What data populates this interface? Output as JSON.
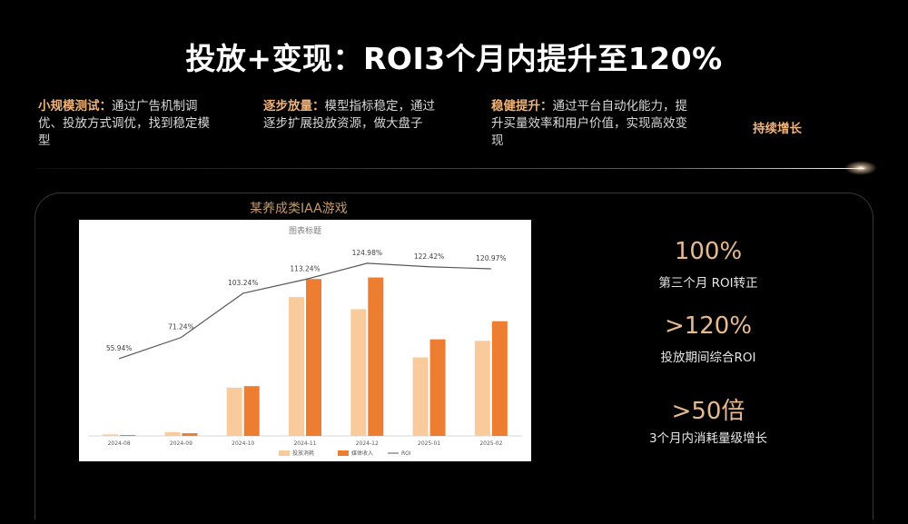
{
  "slide": {
    "title": "投放+变现：ROI3个月内提升至120%"
  },
  "steps": [
    {
      "highlight": "小规模测试：",
      "text": "通过广告机制调优、投放方式调优，找到稳定模型"
    },
    {
      "highlight": "逐步放量：",
      "text": "模型指标稳定，通过逐步扩展投放资源，做大盘子"
    },
    {
      "highlight": "稳健提升：",
      "text": "通过平台自动化能力，提升买量效率和用户价值，实现高效变现"
    },
    {
      "highlight": "持续增长",
      "text": ""
    }
  ],
  "panel": {
    "caption": "某养成类IAA游戏"
  },
  "stats": [
    {
      "value": "100%",
      "label": "第三个月 ROI转正"
    },
    {
      "value": ">120%",
      "label": "投放期间综合ROI"
    },
    {
      "value": ">50倍",
      "label": "3个月内消耗量级增长"
    }
  ],
  "colors": {
    "spend": "#f9cb9c",
    "revenue": "#ed7d31",
    "roi_line": "#595959",
    "accent": "#e7ba8f"
  },
  "chart_data": {
    "type": "bar",
    "title": "图表标题",
    "categories": [
      "2024-08",
      "2024-09",
      "2024-10",
      "2024-11",
      "2024-12",
      "2025-01",
      "2025-02"
    ],
    "series": [
      {
        "name": "投放消耗",
        "type": "bar",
        "values": [
          1,
          2.5,
          32,
          92,
          84,
          52,
          63
        ]
      },
      {
        "name": "媒体收入",
        "type": "bar",
        "values": [
          0.6,
          1.8,
          33,
          104,
          105,
          64,
          76
        ]
      },
      {
        "name": "ROI",
        "type": "line",
        "values": [
          55.94,
          71.24,
          103.24,
          113.24,
          124.98,
          122.42,
          120.97
        ],
        "labels": [
          "55.94%",
          "71.24%",
          "103.24%",
          "113.24%",
          "124.98%",
          "122.42%",
          "120.97%"
        ]
      }
    ],
    "bar_ylim": [
      0,
      130
    ],
    "roi_ylim": [
      0,
      142
    ],
    "legend": "bottom",
    "grid": false
  }
}
